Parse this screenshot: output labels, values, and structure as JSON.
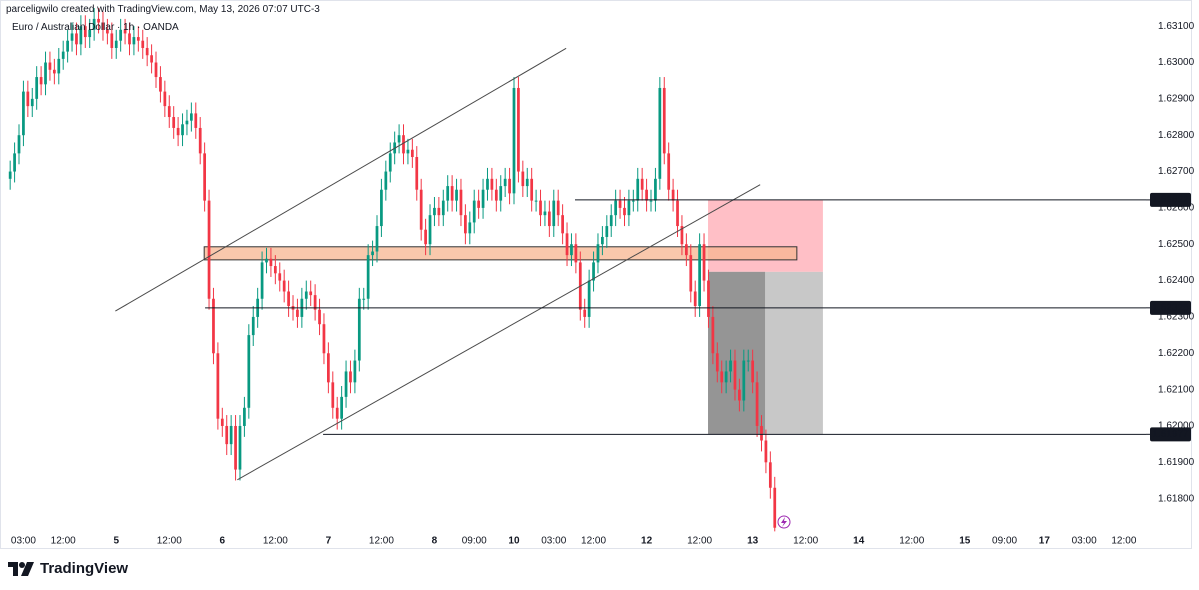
{
  "chart_data": {
    "type": "candlestick",
    "credit": "parceligwilo created with TradingView.com, May 13, 2026 07:07 UTC-3",
    "title": "Euro / Australian Dollar · 1h · OANDA",
    "up_color": "#089981",
    "down_color": "#f23645",
    "open": [
      1.6268,
      1.627,
      1.6275,
      1.628,
      1.6292,
      1.6288,
      1.629,
      1.6296,
      1.6294,
      1.63,
      1.6298,
      1.6297,
      1.6301,
      1.6303,
      1.6306,
      1.6308,
      1.6305,
      1.631,
      1.6307,
      1.6309,
      1.6312,
      1.6311,
      1.6309,
      1.6308,
      1.6304,
      1.6306,
      1.6309,
      1.6308,
      1.6305,
      1.6307,
      1.6306,
      1.6304,
      1.6302,
      1.63,
      1.6296,
      1.6292,
      1.6288,
      1.6285,
      1.6282,
      1.628,
      1.6283,
      1.6284,
      1.6286,
      1.6282,
      1.6275,
      1.6262,
      1.6235,
      1.622,
      1.6202,
      1.62,
      1.6195,
      1.62,
      1.6188,
      1.62,
      1.6205,
      1.6225,
      1.623,
      1.6235,
      1.6245,
      1.6246,
      1.6244,
      1.6242,
      1.624,
      1.6237,
      1.6233,
      1.6232,
      1.623,
      1.6235,
      1.6237,
      1.6236,
      1.6232,
      1.6228,
      1.622,
      1.6212,
      1.6205,
      1.6202,
      1.6208,
      1.6215,
      1.6212,
      1.6218,
      1.6235,
      1.6235,
      1.6247,
      1.6248,
      1.6255,
      1.6265,
      1.627,
      1.6275,
      1.6278,
      1.628,
      1.6275,
      1.6276,
      1.6274,
      1.6265,
      1.6254,
      1.625,
      1.6258,
      1.626,
      1.6258,
      1.6262,
      1.6266,
      1.6262,
      1.6265,
      1.6258,
      1.6253,
      1.6256,
      1.6262,
      1.626,
      1.6265,
      1.6268,
      1.6265,
      1.6262,
      1.6266,
      1.6268,
      1.6264,
      1.6293,
      1.627,
      1.6266,
      1.6268,
      1.6262,
      1.6262,
      1.6258,
      1.6259,
      1.6255,
      1.6262,
      1.6258,
      1.6253,
      1.6247,
      1.625,
      1.6245,
      1.6232,
      1.623,
      1.624,
      1.6245,
      1.625,
      1.6252,
      1.6255,
      1.6258,
      1.6262,
      1.626,
      1.6258,
      1.6262,
      1.6262,
      1.6268,
      1.6265,
      1.6262,
      1.6262,
      1.6268,
      1.6293,
      1.6275,
      1.6265,
      1.6262,
      1.6255,
      1.625,
      1.6247,
      1.6237,
      1.6233,
      1.625,
      1.624,
      1.623,
      1.622,
      1.6215,
      1.6212,
      1.6215,
      1.6218,
      1.621,
      1.6207,
      1.6218,
      1.6218,
      1.6212,
      1.62,
      1.6196,
      1.619,
      1.6183
    ],
    "high": [
      1.6273,
      1.6278,
      1.6283,
      1.6295,
      1.6295,
      1.6293,
      1.6299,
      1.6299,
      1.6303,
      1.6303,
      1.6301,
      1.6304,
      1.6306,
      1.6309,
      1.6311,
      1.6311,
      1.6313,
      1.6313,
      1.6312,
      1.6315,
      1.6315,
      1.6314,
      1.6312,
      1.6311,
      1.6309,
      1.6312,
      1.6312,
      1.6311,
      1.631,
      1.631,
      1.6309,
      1.6307,
      1.6305,
      1.6303,
      1.6299,
      1.6295,
      1.6291,
      1.6288,
      1.6285,
      1.6286,
      1.6287,
      1.6289,
      1.6289,
      1.6285,
      1.6278,
      1.6265,
      1.6238,
      1.6223,
      1.6205,
      1.6203,
      1.6203,
      1.6203,
      1.6203,
      1.6208,
      1.6228,
      1.6233,
      1.6238,
      1.6248,
      1.6249,
      1.6249,
      1.6247,
      1.6245,
      1.6243,
      1.624,
      1.6236,
      1.6235,
      1.6238,
      1.624,
      1.624,
      1.6239,
      1.6235,
      1.6231,
      1.6223,
      1.6215,
      1.6208,
      1.6211,
      1.6218,
      1.6218,
      1.6221,
      1.6238,
      1.6238,
      1.625,
      1.6251,
      1.6258,
      1.6268,
      1.6273,
      1.6278,
      1.6281,
      1.6283,
      1.6283,
      1.6279,
      1.6279,
      1.6277,
      1.6268,
      1.6257,
      1.6261,
      1.6263,
      1.6263,
      1.6265,
      1.6269,
      1.6269,
      1.6268,
      1.6268,
      1.6261,
      1.6259,
      1.6265,
      1.6265,
      1.6268,
      1.6271,
      1.6271,
      1.6268,
      1.6269,
      1.6271,
      1.6271,
      1.6296,
      1.6296,
      1.6273,
      1.6271,
      1.6271,
      1.6265,
      1.6265,
      1.6262,
      1.6262,
      1.6265,
      1.6265,
      1.6261,
      1.6256,
      1.6253,
      1.6253,
      1.6248,
      1.6235,
      1.6243,
      1.6248,
      1.6253,
      1.6255,
      1.6258,
      1.6261,
      1.6265,
      1.6265,
      1.6263,
      1.6265,
      1.6265,
      1.6271,
      1.6271,
      1.6268,
      1.6265,
      1.6271,
      1.6296,
      1.6296,
      1.6278,
      1.6268,
      1.6265,
      1.6258,
      1.6253,
      1.625,
      1.624,
      1.6253,
      1.6253,
      1.6243,
      1.6233,
      1.6223,
      1.6218,
      1.6218,
      1.6221,
      1.6221,
      1.6213,
      1.6221,
      1.6221,
      1.6221,
      1.6215,
      1.6203,
      1.6199,
      1.6193,
      1.6186
    ],
    "low": [
      1.6265,
      1.6267,
      1.6272,
      1.6277,
      1.6285,
      1.6285,
      1.6287,
      1.6291,
      1.6291,
      1.6295,
      1.6294,
      1.6294,
      1.6298,
      1.63,
      1.6303,
      1.6302,
      1.6302,
      1.6304,
      1.6304,
      1.6306,
      1.6308,
      1.6306,
      1.6305,
      1.6301,
      1.6301,
      1.6303,
      1.6305,
      1.6302,
      1.6302,
      1.6303,
      1.6301,
      1.6299,
      1.6297,
      1.6293,
      1.6289,
      1.6285,
      1.6282,
      1.6279,
      1.6277,
      1.6277,
      1.628,
      1.6281,
      1.6279,
      1.6272,
      1.6259,
      1.6232,
      1.6217,
      1.6199,
      1.6197,
      1.6192,
      1.6192,
      1.6185,
      1.6185,
      1.6197,
      1.6202,
      1.6222,
      1.6227,
      1.6232,
      1.6242,
      1.6241,
      1.6239,
      1.6237,
      1.6234,
      1.623,
      1.6229,
      1.6227,
      1.6227,
      1.6232,
      1.6233,
      1.6229,
      1.6225,
      1.6217,
      1.6209,
      1.6202,
      1.6199,
      1.6199,
      1.6205,
      1.6209,
      1.6209,
      1.6215,
      1.6232,
      1.6232,
      1.6244,
      1.6245,
      1.6252,
      1.6262,
      1.6267,
      1.6272,
      1.6275,
      1.6272,
      1.6272,
      1.6271,
      1.6262,
      1.6251,
      1.6247,
      1.6247,
      1.6255,
      1.6255,
      1.6255,
      1.6259,
      1.6259,
      1.6259,
      1.6255,
      1.625,
      1.625,
      1.6253,
      1.6257,
      1.6257,
      1.6262,
      1.6262,
      1.6259,
      1.6259,
      1.6263,
      1.6261,
      1.6261,
      1.6267,
      1.6263,
      1.6263,
      1.6259,
      1.6259,
      1.6255,
      1.6255,
      1.6252,
      1.6252,
      1.6255,
      1.625,
      1.6244,
      1.6244,
      1.6242,
      1.6229,
      1.6227,
      1.6227,
      1.6237,
      1.6242,
      1.6247,
      1.6249,
      1.6252,
      1.6255,
      1.6257,
      1.6255,
      1.6255,
      1.6259,
      1.6259,
      1.6262,
      1.6259,
      1.6259,
      1.6259,
      1.6265,
      1.6272,
      1.6262,
      1.6259,
      1.6252,
      1.6247,
      1.6244,
      1.6234,
      1.623,
      1.623,
      1.6237,
      1.6227,
      1.6217,
      1.6212,
      1.6209,
      1.6209,
      1.6212,
      1.6207,
      1.6204,
      1.6204,
      1.6215,
      1.6209,
      1.6197,
      1.6193,
      1.6187,
      1.618,
      1.6171
    ],
    "close": [
      1.627,
      1.6275,
      1.628,
      1.6292,
      1.6288,
      1.629,
      1.6296,
      1.6294,
      1.63,
      1.6298,
      1.6297,
      1.6301,
      1.6303,
      1.6306,
      1.6308,
      1.6305,
      1.631,
      1.6307,
      1.6309,
      1.6312,
      1.6311,
      1.6309,
      1.6308,
      1.6304,
      1.6306,
      1.6309,
      1.6308,
      1.6305,
      1.6307,
      1.6306,
      1.6304,
      1.6302,
      1.63,
      1.6296,
      1.6292,
      1.6288,
      1.6285,
      1.6282,
      1.628,
      1.6283,
      1.6284,
      1.6286,
      1.6282,
      1.6275,
      1.6262,
      1.6235,
      1.622,
      1.6202,
      1.62,
      1.6195,
      1.62,
      1.6188,
      1.62,
      1.6205,
      1.6225,
      1.623,
      1.6235,
      1.6245,
      1.6246,
      1.6244,
      1.6242,
      1.624,
      1.6237,
      1.6233,
      1.6232,
      1.623,
      1.6235,
      1.6237,
      1.6236,
      1.6232,
      1.6228,
      1.622,
      1.6212,
      1.6205,
      1.6202,
      1.6208,
      1.6215,
      1.6212,
      1.6218,
      1.6235,
      1.6235,
      1.6247,
      1.6248,
      1.6255,
      1.6265,
      1.627,
      1.6275,
      1.6278,
      1.628,
      1.6275,
      1.6276,
      1.6274,
      1.6265,
      1.6254,
      1.625,
      1.6258,
      1.626,
      1.6258,
      1.6262,
      1.6266,
      1.6262,
      1.6265,
      1.6258,
      1.6253,
      1.6256,
      1.6262,
      1.626,
      1.6265,
      1.6268,
      1.6265,
      1.6262,
      1.6266,
      1.6268,
      1.6264,
      1.6293,
      1.627,
      1.6266,
      1.6268,
      1.6262,
      1.6262,
      1.6258,
      1.6259,
      1.6255,
      1.6262,
      1.6258,
      1.6253,
      1.6247,
      1.625,
      1.6245,
      1.6232,
      1.623,
      1.624,
      1.6245,
      1.625,
      1.6252,
      1.6255,
      1.6258,
      1.6262,
      1.626,
      1.6258,
      1.6262,
      1.6262,
      1.6268,
      1.6265,
      1.6262,
      1.6262,
      1.6268,
      1.6293,
      1.6275,
      1.6265,
      1.6262,
      1.6255,
      1.625,
      1.6247,
      1.6237,
      1.6233,
      1.625,
      1.624,
      1.623,
      1.622,
      1.6215,
      1.6212,
      1.6215,
      1.6218,
      1.621,
      1.6207,
      1.6218,
      1.6218,
      1.6212,
      1.62,
      1.6196,
      1.619,
      1.6183,
      1.6172
    ],
    "xlim": [
      -2.3,
      257
    ],
    "xticks": [
      {
        "value": 3,
        "label": "03:00"
      },
      {
        "value": 12,
        "label": "12:00"
      },
      {
        "value": 24,
        "label": "5"
      },
      {
        "value": 36,
        "label": "12:00"
      },
      {
        "value": 48,
        "label": "6"
      },
      {
        "value": 60,
        "label": "12:00"
      },
      {
        "value": 72,
        "label": "7"
      },
      {
        "value": 84,
        "label": "12:00"
      },
      {
        "value": 96,
        "label": "8"
      },
      {
        "value": 105,
        "label": "09:00"
      },
      {
        "value": 114,
        "label": "10"
      },
      {
        "value": 123,
        "label": "03:00"
      },
      {
        "value": 132,
        "label": "12:00"
      },
      {
        "value": 144,
        "label": "12"
      },
      {
        "value": 156,
        "label": "12:00"
      },
      {
        "value": 168,
        "label": "13"
      },
      {
        "value": 180,
        "label": "12:00"
      },
      {
        "value": 192,
        "label": "14"
      },
      {
        "value": 204,
        "label": "12:00"
      },
      {
        "value": 216,
        "label": "15"
      },
      {
        "value": 225,
        "label": "09:00"
      },
      {
        "value": 234,
        "label": "17"
      },
      {
        "value": 243,
        "label": "03:00"
      },
      {
        "value": 252,
        "label": "12:00"
      }
    ],
    "ylim": [
      1.617,
      1.63172
    ],
    "yticks": [
      {
        "value": 1.618,
        "label": "1.61800"
      },
      {
        "value": 1.619,
        "label": "1.61900"
      },
      {
        "value": 1.62,
        "label": "1.62000"
      },
      {
        "value": 1.621,
        "label": "1.62100"
      },
      {
        "value": 1.622,
        "label": "1.62200"
      },
      {
        "value": 1.623,
        "label": "1.62300"
      },
      {
        "value": 1.624,
        "label": "1.62400"
      },
      {
        "value": 1.625,
        "label": "1.62500"
      },
      {
        "value": 1.626,
        "label": "1.62600"
      },
      {
        "value": 1.627,
        "label": "1.62700"
      },
      {
        "value": 1.628,
        "label": "1.62800"
      },
      {
        "value": 1.629,
        "label": "1.62900"
      },
      {
        "value": 1.63,
        "label": "1.63000"
      },
      {
        "value": 1.631,
        "label": "1.63100"
      }
    ],
    "grid": false,
    "zones": [
      {
        "x0": 157.9,
        "x1": 183.9,
        "top": 1.62622,
        "bottom": 1.62424,
        "color": "#ffb8c0",
        "outline": false
      },
      {
        "x0": 157.9,
        "x1": 183.9,
        "top": 1.62424,
        "bottom": 1.61977,
        "color": "#c2c2c2",
        "outline": false
      },
      {
        "x0": 157.9,
        "x1": 170.8,
        "top": 1.62424,
        "bottom": 1.61977,
        "color": "#8f8f8f",
        "outline": false
      },
      {
        "x0": 43.9,
        "x1": 178,
        "top": 1.62493,
        "bottom": 1.62457,
        "color": "#f7b590",
        "outline": true
      }
    ],
    "trendlines": [
      {
        "x": [
          23.8,
          125.8
        ],
        "y": [
          1.62316,
          1.63039
        ]
      },
      {
        "x": [
          51.4,
          169.7
        ],
        "y": [
          1.61852,
          1.62664
        ]
      }
    ],
    "levels": [
      {
        "price": 1.62622,
        "start": 127.8
      },
      {
        "price": 1.62325,
        "start": 44.1
      },
      {
        "price": 1.61977,
        "start": 70.8
      }
    ]
  },
  "footer": {
    "brand": "TradingView"
  }
}
